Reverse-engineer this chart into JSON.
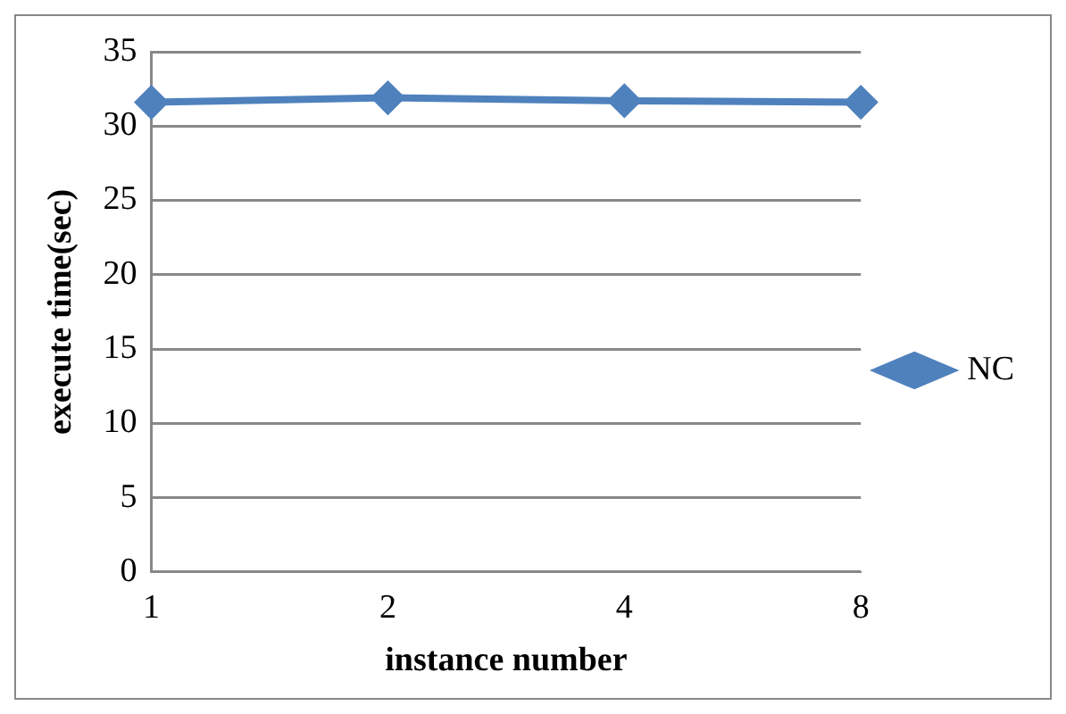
{
  "chart_data": {
    "type": "line",
    "xlabel": "instance number",
    "ylabel": "execute time(sec)",
    "categories": [
      "1",
      "2",
      "4",
      "8"
    ],
    "series": [
      {
        "name": "NC",
        "color": "#4f81bd",
        "values": [
          31.6,
          31.9,
          31.7,
          31.6
        ]
      }
    ],
    "ylim": [
      0,
      35
    ],
    "yticks": [
      0,
      5,
      10,
      15,
      20,
      25,
      30,
      35
    ],
    "grid": "y",
    "legend": "right",
    "marker": "diamond",
    "line_style": "solid"
  }
}
